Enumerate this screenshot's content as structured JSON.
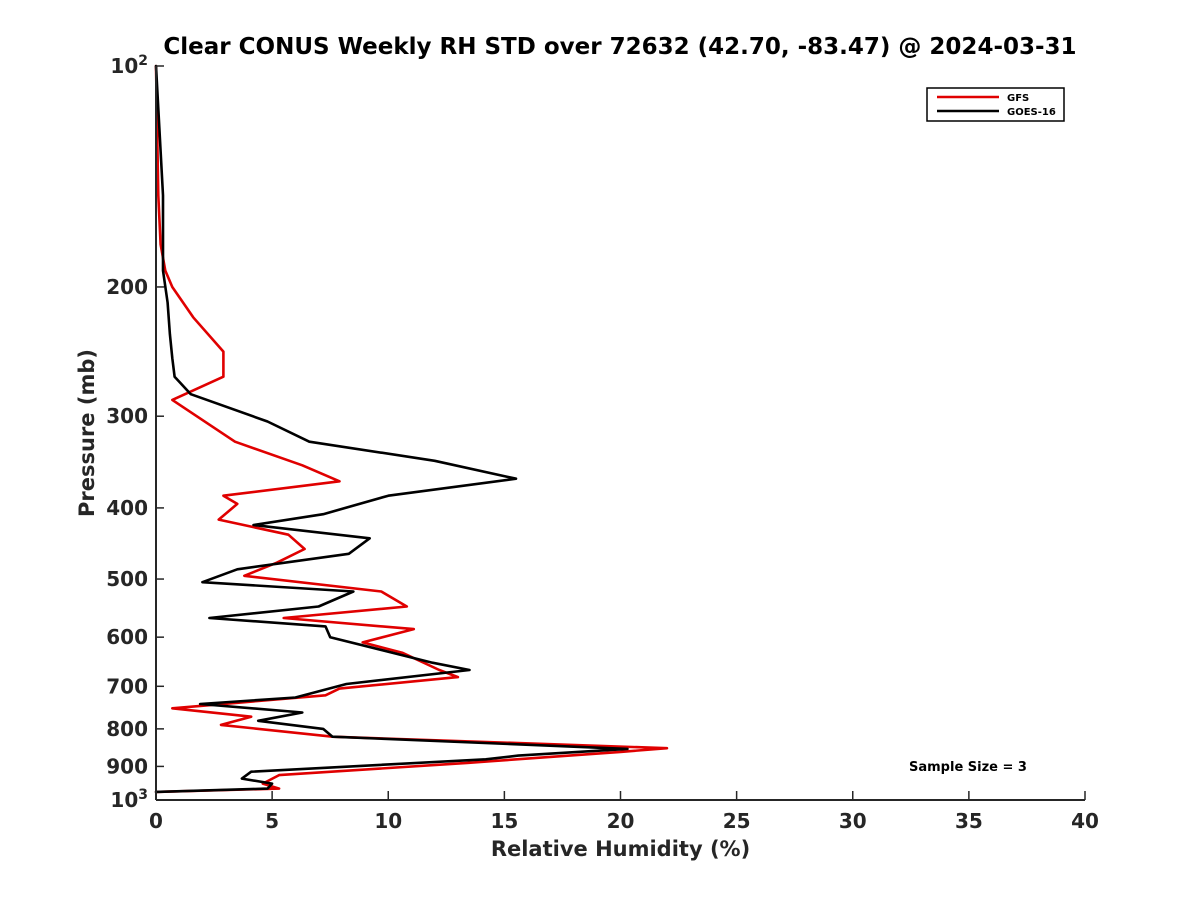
{
  "chart_data": {
    "type": "line",
    "title": "Clear CONUS Weekly RH STD over 72632 (42.70, -83.47) @ 2024-03-31",
    "xlabel": "Relative Humidity (%)",
    "ylabel": "Pressure (mb)",
    "xlim": [
      0,
      40
    ],
    "ylim": [
      100,
      1000
    ],
    "y_scale": "log",
    "y_reversed": true,
    "grid": false,
    "legend_position": "top-right",
    "x_ticks": [
      "0",
      "5",
      "10",
      "15",
      "20",
      "25",
      "30",
      "35",
      "40"
    ],
    "y_ticks": [
      {
        "value": 100,
        "label": "10",
        "sup": "2"
      },
      {
        "value": 200,
        "label": "200"
      },
      {
        "value": 300,
        "label": "300"
      },
      {
        "value": 400,
        "label": "400"
      },
      {
        "value": 500,
        "label": "500"
      },
      {
        "value": 600,
        "label": "600"
      },
      {
        "value": 700,
        "label": "700"
      },
      {
        "value": 800,
        "label": "800"
      },
      {
        "value": 900,
        "label": "900"
      },
      {
        "value": 1000,
        "label": "10",
        "sup": "3"
      }
    ],
    "series": [
      {
        "name": "GFS",
        "color": "#e00000",
        "points": [
          [
            0.0,
            100
          ],
          [
            0.1,
            150
          ],
          [
            0.2,
            175
          ],
          [
            0.4,
            190
          ],
          [
            0.7,
            200
          ],
          [
            1.6,
            220
          ],
          [
            2.9,
            245
          ],
          [
            2.9,
            265
          ],
          [
            0.7,
            285
          ],
          [
            3.4,
            325
          ],
          [
            6.3,
            350
          ],
          [
            7.9,
            368
          ],
          [
            2.9,
            385
          ],
          [
            3.5,
            395
          ],
          [
            2.7,
            415
          ],
          [
            5.7,
            435
          ],
          [
            6.4,
            455
          ],
          [
            5.2,
            475
          ],
          [
            3.8,
            495
          ],
          [
            9.7,
            520
          ],
          [
            10.8,
            545
          ],
          [
            5.5,
            565
          ],
          [
            11.1,
            585
          ],
          [
            8.9,
            610
          ],
          [
            10.6,
            630
          ],
          [
            12.2,
            665
          ],
          [
            13.0,
            680
          ],
          [
            7.9,
            705
          ],
          [
            7.3,
            720
          ],
          [
            0.7,
            750
          ],
          [
            4.1,
            770
          ],
          [
            2.8,
            790
          ],
          [
            7.6,
            820
          ],
          [
            22.0,
            850
          ],
          [
            20.0,
            860
          ],
          [
            13.4,
            890
          ],
          [
            5.3,
            925
          ],
          [
            4.6,
            950
          ],
          [
            5.3,
            965
          ],
          [
            0.0,
            975
          ]
        ]
      },
      {
        "name": "GOES-16",
        "color": "#000000",
        "points": [
          [
            0.0,
            100
          ],
          [
            0.3,
            150
          ],
          [
            0.3,
            190
          ],
          [
            0.5,
            210
          ],
          [
            0.6,
            232
          ],
          [
            0.7,
            250
          ],
          [
            0.8,
            265
          ],
          [
            1.5,
            280
          ],
          [
            4.8,
            305
          ],
          [
            6.6,
            325
          ],
          [
            12.0,
            345
          ],
          [
            15.5,
            365
          ],
          [
            10.0,
            385
          ],
          [
            7.2,
            408
          ],
          [
            4.2,
            422
          ],
          [
            9.2,
            440
          ],
          [
            8.3,
            462
          ],
          [
            3.5,
            485
          ],
          [
            2.0,
            505
          ],
          [
            8.5,
            520
          ],
          [
            7.0,
            545
          ],
          [
            2.3,
            565
          ],
          [
            7.3,
            580
          ],
          [
            7.5,
            600
          ],
          [
            11.9,
            650
          ],
          [
            13.5,
            665
          ],
          [
            8.2,
            695
          ],
          [
            6.0,
            725
          ],
          [
            1.9,
            740
          ],
          [
            6.3,
            760
          ],
          [
            4.4,
            780
          ],
          [
            7.2,
            800
          ],
          [
            7.6,
            820
          ],
          [
            20.3,
            852
          ],
          [
            15.6,
            870
          ],
          [
            14.2,
            880
          ],
          [
            4.1,
            915
          ],
          [
            3.7,
            935
          ],
          [
            5.0,
            950
          ],
          [
            4.8,
            965
          ],
          [
            0.0,
            975
          ]
        ]
      }
    ],
    "annotations": [
      {
        "text": "Sample Size = 3"
      }
    ]
  }
}
